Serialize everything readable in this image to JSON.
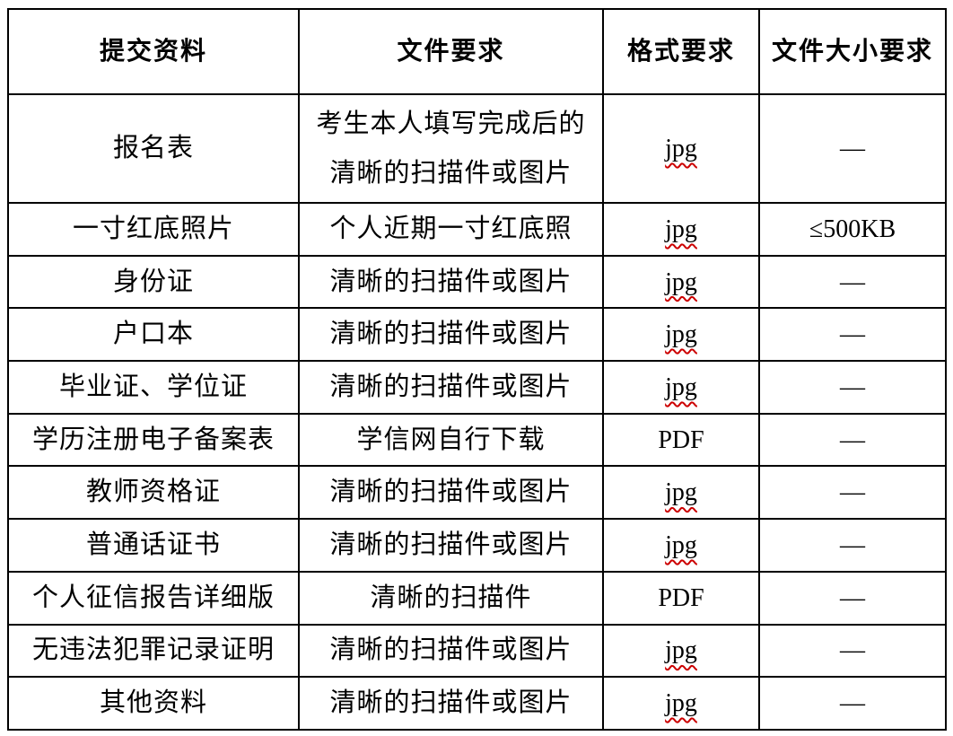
{
  "page": {
    "background_color": "#ffffff",
    "border_color": "#000000",
    "spellcheck_underline_color": "#cc0000"
  },
  "table": {
    "headers": [
      {
        "label": "提交资料"
      },
      {
        "label": "文件要求"
      },
      {
        "label": "格式要求"
      },
      {
        "label": "文件大小要求"
      }
    ],
    "rows": [
      {
        "material": "报名表",
        "file_requirement": "考生本人填写完成后的清晰的扫描件或图片",
        "format": "jpg",
        "format_spellcheck_flag": true,
        "size_limit": "—"
      },
      {
        "material": "一寸红底照片",
        "file_requirement": "个人近期一寸红底照",
        "format": "jpg",
        "format_spellcheck_flag": true,
        "size_limit": "≤500KB"
      },
      {
        "material": "身份证",
        "file_requirement": "清晰的扫描件或图片",
        "format": "jpg",
        "format_spellcheck_flag": true,
        "size_limit": "—"
      },
      {
        "material": "户口本",
        "file_requirement": "清晰的扫描件或图片",
        "format": "jpg",
        "format_spellcheck_flag": true,
        "size_limit": "—"
      },
      {
        "material": "毕业证、学位证",
        "file_requirement": "清晰的扫描件或图片",
        "format": "jpg",
        "format_spellcheck_flag": true,
        "size_limit": "—"
      },
      {
        "material": "学历注册电子备案表",
        "file_requirement": "学信网自行下载",
        "format": "PDF",
        "format_spellcheck_flag": false,
        "size_limit": "—"
      },
      {
        "material": "教师资格证",
        "file_requirement": "清晰的扫描件或图片",
        "format": "jpg",
        "format_spellcheck_flag": true,
        "size_limit": "—"
      },
      {
        "material": "普通话证书",
        "file_requirement": "清晰的扫描件或图片",
        "format": "jpg",
        "format_spellcheck_flag": true,
        "size_limit": "—"
      },
      {
        "material": "个人征信报告详细版",
        "file_requirement": "清晰的扫描件",
        "format": "PDF",
        "format_spellcheck_flag": false,
        "size_limit": "—"
      },
      {
        "material": "无违法犯罪记录证明",
        "file_requirement": "清晰的扫描件或图片",
        "format": "jpg",
        "format_spellcheck_flag": true,
        "size_limit": "—"
      },
      {
        "material": "其他资料",
        "file_requirement": "清晰的扫描件或图片",
        "format": "jpg",
        "format_spellcheck_flag": true,
        "size_limit": "—"
      }
    ]
  }
}
